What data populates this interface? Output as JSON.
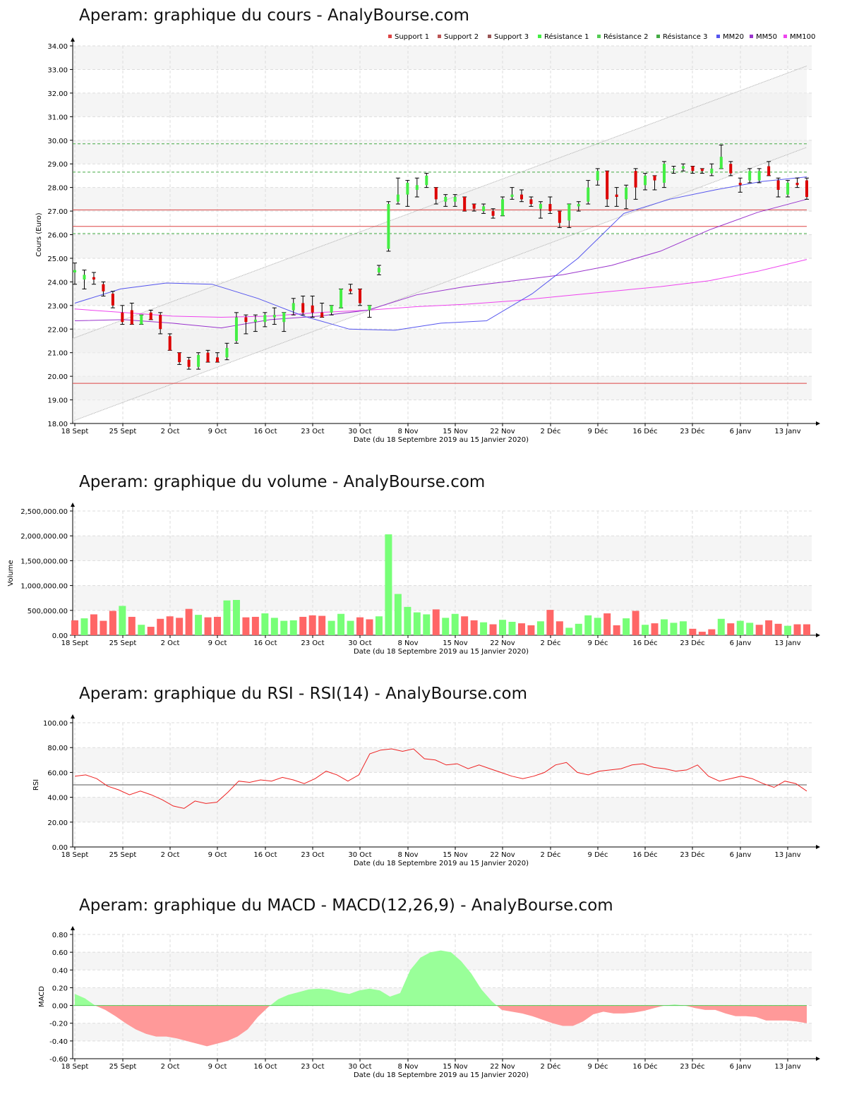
{
  "x_tick_labels": [
    "18 Sept",
    "25 Sept",
    "2 Oct",
    "9 Oct",
    "16 Oct",
    "23 Oct",
    "30 Oct",
    "8 Nov",
    "15 Nov",
    "22 Nov",
    "2 Déc",
    "9 Déc",
    "16 Déc",
    "23 Déc",
    "6 Janv",
    "13 Janv"
  ],
  "x_axis_label": "Date (du 18 Septembre 2019 au 15 Janvier 2020)",
  "colors": {
    "up": "#44ee44",
    "down": "#dd0000",
    "rsi": "#ee2222",
    "macd_pos": "#99ff99",
    "macd_neg": "#ff9999",
    "mm20": "#5555ee",
    "mm50": "#9933cc",
    "mm100": "#ee44ee",
    "support": "#dd4444",
    "resistance": "#44aa44"
  },
  "chart_data": [
    {
      "type": "candlestick",
      "title": "Aperam: graphique du cours - AnalyBourse.com",
      "ylabel": "Cours (Euro)",
      "ylim": [
        18,
        34
      ],
      "yticks": [
        "18.00",
        "19.00",
        "20.00",
        "21.00",
        "22.00",
        "23.00",
        "24.00",
        "25.00",
        "26.00",
        "27.00",
        "28.00",
        "29.00",
        "30.00",
        "31.00",
        "32.00",
        "33.00",
        "34.00"
      ],
      "legend": [
        "Support 1",
        "Support 2",
        "Support 3",
        "Résistance 1",
        "Résistance 2",
        "Résistance 3",
        "MM20",
        "MM50",
        "MM100"
      ],
      "support_levels": [
        27.05,
        26.35,
        19.7
      ],
      "resistance_levels": [
        26.05,
        28.65,
        29.85
      ],
      "channel": {
        "upper_start": 21.6,
        "upper_end": 33.15,
        "lower_start": 18.1,
        "lower_end": 29.7
      },
      "candles": [
        [
          24.4,
          24.8,
          23.9,
          24.5
        ],
        [
          24.1,
          24.5,
          23.7,
          24.3
        ],
        [
          24.2,
          24.4,
          23.9,
          24.1
        ],
        [
          23.9,
          24.0,
          23.4,
          23.6
        ],
        [
          23.5,
          23.6,
          22.9,
          23.0
        ],
        [
          22.7,
          23.0,
          22.2,
          22.3
        ],
        [
          22.8,
          23.1,
          22.2,
          22.2
        ],
        [
          22.2,
          22.6,
          22.2,
          22.6
        ],
        [
          22.7,
          22.8,
          22.4,
          22.4
        ],
        [
          22.6,
          22.7,
          21.8,
          22.0
        ],
        [
          21.7,
          21.8,
          21.1,
          21.1
        ],
        [
          21.0,
          21.0,
          20.5,
          20.6
        ],
        [
          20.7,
          20.8,
          20.3,
          20.4
        ],
        [
          20.4,
          21.0,
          20.3,
          20.9
        ],
        [
          21.0,
          21.1,
          20.6,
          20.6
        ],
        [
          20.8,
          21.0,
          20.6,
          20.6
        ],
        [
          20.8,
          21.4,
          20.7,
          21.2
        ],
        [
          21.5,
          22.7,
          21.4,
          22.5
        ],
        [
          22.5,
          22.6,
          21.8,
          22.3
        ],
        [
          22.3,
          22.6,
          21.9,
          22.4
        ],
        [
          22.3,
          22.7,
          22.1,
          22.6
        ],
        [
          22.5,
          22.9,
          22.2,
          22.6
        ],
        [
          22.3,
          22.7,
          21.9,
          22.7
        ],
        [
          22.8,
          23.3,
          22.6,
          23.1
        ],
        [
          23.1,
          23.4,
          22.6,
          22.7
        ],
        [
          23.0,
          23.4,
          22.5,
          22.7
        ],
        [
          22.7,
          23.1,
          22.5,
          22.5
        ],
        [
          22.7,
          23.0,
          22.6,
          23.0
        ],
        [
          22.9,
          23.7,
          22.9,
          23.7
        ],
        [
          23.7,
          23.9,
          23.5,
          23.6
        ],
        [
          23.7,
          23.7,
          23.0,
          23.1
        ],
        [
          22.8,
          23.0,
          22.5,
          23.0
        ],
        [
          24.4,
          24.7,
          24.3,
          24.6
        ],
        [
          25.4,
          27.4,
          25.3,
          27.3
        ],
        [
          27.4,
          28.4,
          27.3,
          27.7
        ],
        [
          27.7,
          28.3,
          27.2,
          28.2
        ],
        [
          27.9,
          28.4,
          27.6,
          28.1
        ],
        [
          28.1,
          28.6,
          28.0,
          28.5
        ],
        [
          28.0,
          28.0,
          27.3,
          27.5
        ],
        [
          27.4,
          27.7,
          27.2,
          27.6
        ],
        [
          27.4,
          27.7,
          27.2,
          27.6
        ],
        [
          27.6,
          27.6,
          27.0,
          27.0
        ],
        [
          27.3,
          27.3,
          27.0,
          27.1
        ],
        [
          27.0,
          27.3,
          26.9,
          27.2
        ],
        [
          27.0,
          27.1,
          26.7,
          26.8
        ],
        [
          26.8,
          27.6,
          26.8,
          27.5
        ],
        [
          27.6,
          28.0,
          27.5,
          27.7
        ],
        [
          27.7,
          27.9,
          27.4,
          27.5
        ],
        [
          27.5,
          27.6,
          27.2,
          27.3
        ],
        [
          27.1,
          27.4,
          26.7,
          27.3
        ],
        [
          27.3,
          27.6,
          26.9,
          27.0
        ],
        [
          27.0,
          27.0,
          26.3,
          26.5
        ],
        [
          26.6,
          27.3,
          26.3,
          27.3
        ],
        [
          27.2,
          27.4,
          27.0,
          27.3
        ],
        [
          27.4,
          28.3,
          27.3,
          28.0
        ],
        [
          28.3,
          28.8,
          28.1,
          28.7
        ],
        [
          28.7,
          28.7,
          27.2,
          27.5
        ],
        [
          27.7,
          28.0,
          27.2,
          27.6
        ],
        [
          27.5,
          28.1,
          27.1,
          28.0
        ],
        [
          28.7,
          28.8,
          27.5,
          28.0
        ],
        [
          28.1,
          28.6,
          27.9,
          28.5
        ],
        [
          28.5,
          28.5,
          27.9,
          28.3
        ],
        [
          28.2,
          29.1,
          28.0,
          29.0
        ],
        [
          28.8,
          28.9,
          28.6,
          28.8
        ],
        [
          28.8,
          29.0,
          28.7,
          28.9
        ],
        [
          28.9,
          28.9,
          28.6,
          28.7
        ],
        [
          28.8,
          28.8,
          28.6,
          28.7
        ],
        [
          28.6,
          29.0,
          28.5,
          28.8
        ],
        [
          28.8,
          29.8,
          28.8,
          29.3
        ],
        [
          29.0,
          29.1,
          28.5,
          28.6
        ],
        [
          28.2,
          28.4,
          27.8,
          28.1
        ],
        [
          28.3,
          28.8,
          28.2,
          28.7
        ],
        [
          28.3,
          28.8,
          28.2,
          28.7
        ],
        [
          28.9,
          29.1,
          28.5,
          28.5
        ],
        [
          28.3,
          28.4,
          27.6,
          27.9
        ],
        [
          27.7,
          28.3,
          27.6,
          28.2
        ],
        [
          28.2,
          28.4,
          28.0,
          28.1
        ],
        [
          28.3,
          28.4,
          27.5,
          27.6
        ]
      ],
      "mm20": [
        23.1,
        23.7,
        23.95,
        23.9,
        23.3,
        22.55,
        22.0,
        21.95,
        22.25,
        22.35,
        23.5,
        25.0,
        26.9,
        27.5,
        27.9,
        28.25,
        28.45
      ],
      "mm50": [
        22.35,
        22.4,
        22.25,
        22.05,
        22.4,
        22.55,
        22.8,
        23.45,
        23.8,
        24.05,
        24.3,
        24.7,
        25.3,
        26.2,
        26.95,
        27.5
      ],
      "mm100": [
        22.85,
        22.7,
        22.55,
        22.5,
        22.55,
        22.7,
        22.8,
        22.95,
        23.05,
        23.2,
        23.4,
        23.6,
        23.8,
        24.05,
        24.45,
        24.95
      ]
    },
    {
      "type": "bar",
      "title": "Aperam: graphique du volume - AnalyBourse.com",
      "ylabel": "Volume",
      "ylim": [
        0,
        2500000
      ],
      "yticks": [
        "0.00",
        "500,000.00",
        "1,000,000.00",
        "1,500,000.00",
        "2,000,000.00",
        "2,500,000.00"
      ],
      "values": [
        300000,
        340000,
        420000,
        290000,
        490000,
        590000,
        370000,
        210000,
        170000,
        330000,
        380000,
        350000,
        530000,
        410000,
        360000,
        370000,
        700000,
        710000,
        360000,
        370000,
        440000,
        350000,
        290000,
        300000,
        370000,
        400000,
        390000,
        290000,
        430000,
        290000,
        360000,
        320000,
        380000,
        2030000,
        830000,
        570000,
        460000,
        420000,
        520000,
        350000,
        430000,
        380000,
        300000,
        260000,
        220000,
        310000,
        270000,
        240000,
        200000,
        280000,
        510000,
        280000,
        150000,
        230000,
        400000,
        350000,
        440000,
        200000,
        340000,
        490000,
        210000,
        240000,
        320000,
        250000,
        280000,
        130000,
        70000,
        120000,
        330000,
        240000,
        290000,
        250000,
        210000,
        300000,
        230000,
        190000,
        220000,
        220000
      ],
      "bar_up": [
        false,
        true,
        false,
        false,
        false,
        true,
        false,
        true,
        false,
        false,
        false,
        false,
        false,
        true,
        false,
        false,
        true,
        true,
        false,
        false,
        true,
        true,
        true,
        true,
        false,
        false,
        false,
        true,
        true,
        true,
        false,
        false,
        true,
        true,
        true,
        true,
        true,
        true,
        false,
        true,
        true,
        false,
        false,
        true,
        false,
        true,
        true,
        false,
        false,
        true,
        false,
        false,
        true,
        true,
        true,
        true,
        false,
        false,
        true,
        false,
        true,
        false,
        true,
        true,
        true,
        false,
        false,
        false,
        true,
        false,
        true,
        true,
        false,
        false,
        false,
        true,
        false,
        false
      ]
    },
    {
      "type": "line",
      "title": "Aperam: graphique du RSI - RSI(14) - AnalyBourse.com",
      "ylabel": "RSI",
      "ylim": [
        0,
        100
      ],
      "yticks": [
        "0.00",
        "20.00",
        "40.00",
        "60.00",
        "80.00",
        "100.00"
      ],
      "reference": 50,
      "values": [
        57,
        58,
        55,
        49,
        46,
        42,
        45,
        42,
        38,
        33,
        31,
        37,
        35,
        36,
        44,
        53,
        52,
        54,
        53,
        56,
        54,
        51,
        55,
        61,
        58,
        53,
        58,
        75,
        78,
        79,
        77,
        79,
        71,
        70,
        66,
        67,
        63,
        66,
        63,
        60,
        57,
        55,
        57,
        60,
        66,
        68,
        60,
        58,
        61,
        62,
        63,
        66,
        67,
        64,
        63,
        61,
        62,
        66,
        57,
        53,
        55,
        57,
        55,
        51,
        48,
        53,
        51,
        45
      ]
    },
    {
      "type": "area",
      "title": "Aperam: graphique du MACD - MACD(12,26,9) - AnalyBourse.com",
      "ylabel": "MACD",
      "ylim": [
        -0.6,
        0.8
      ],
      "yticks": [
        "-0.60",
        "-0.40",
        "-0.20",
        "0.00",
        "0.20",
        "0.40",
        "0.60",
        "0.80"
      ],
      "values": [
        0.13,
        0.08,
        0.0,
        -0.05,
        -0.12,
        -0.2,
        -0.27,
        -0.32,
        -0.35,
        -0.35,
        -0.37,
        -0.4,
        -0.43,
        -0.46,
        -0.43,
        -0.4,
        -0.35,
        -0.27,
        -0.13,
        -0.02,
        0.07,
        0.12,
        0.15,
        0.18,
        0.19,
        0.18,
        0.15,
        0.13,
        0.17,
        0.19,
        0.17,
        0.1,
        0.14,
        0.4,
        0.54,
        0.6,
        0.62,
        0.6,
        0.5,
        0.36,
        0.18,
        0.05,
        -0.05,
        -0.07,
        -0.09,
        -0.12,
        -0.16,
        -0.2,
        -0.23,
        -0.23,
        -0.18,
        -0.1,
        -0.07,
        -0.09,
        -0.09,
        -0.08,
        -0.06,
        -0.03,
        0.0,
        0.01,
        0.0,
        -0.03,
        -0.05,
        -0.05,
        -0.09,
        -0.12,
        -0.12,
        -0.13,
        -0.17,
        -0.17,
        -0.17,
        -0.18,
        -0.2
      ]
    }
  ]
}
